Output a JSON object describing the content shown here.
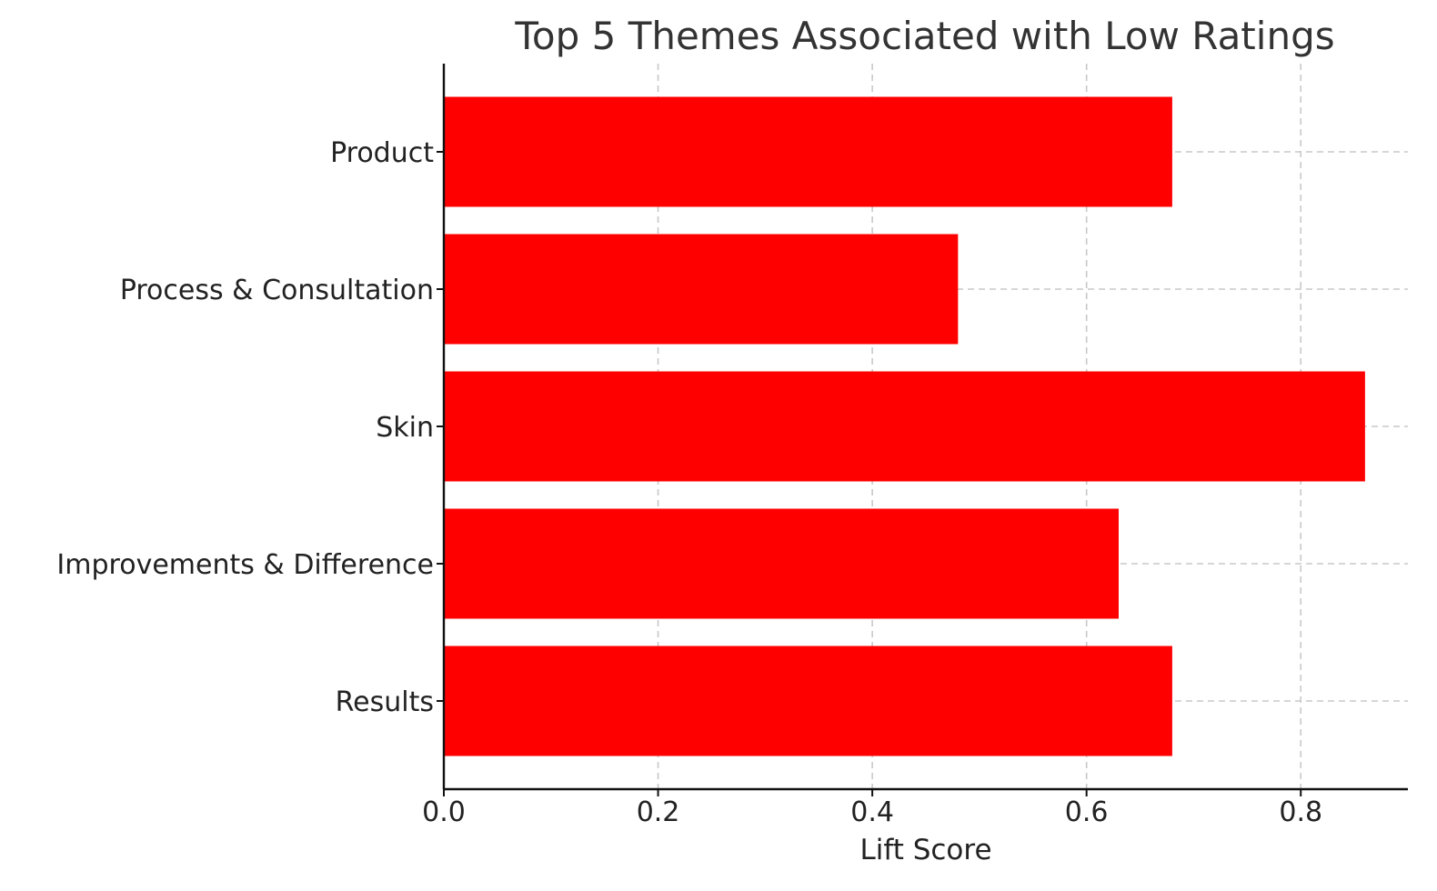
{
  "chart_data": {
    "type": "bar",
    "orientation": "horizontal",
    "title": "Top 5 Themes Associated with Low Ratings",
    "xlabel": "Lift Score",
    "ylabel": "",
    "categories": [
      "Product",
      "Process & Consultation",
      "Skin",
      "Improvements & Difference",
      "Results"
    ],
    "values": [
      0.68,
      0.48,
      0.86,
      0.63,
      0.68
    ],
    "xlim": [
      0,
      0.9
    ],
    "xticks": [
      "0.0",
      "0.2",
      "0.4",
      "0.6",
      "0.8"
    ],
    "grid": true,
    "bar_color": "#ff0000"
  }
}
